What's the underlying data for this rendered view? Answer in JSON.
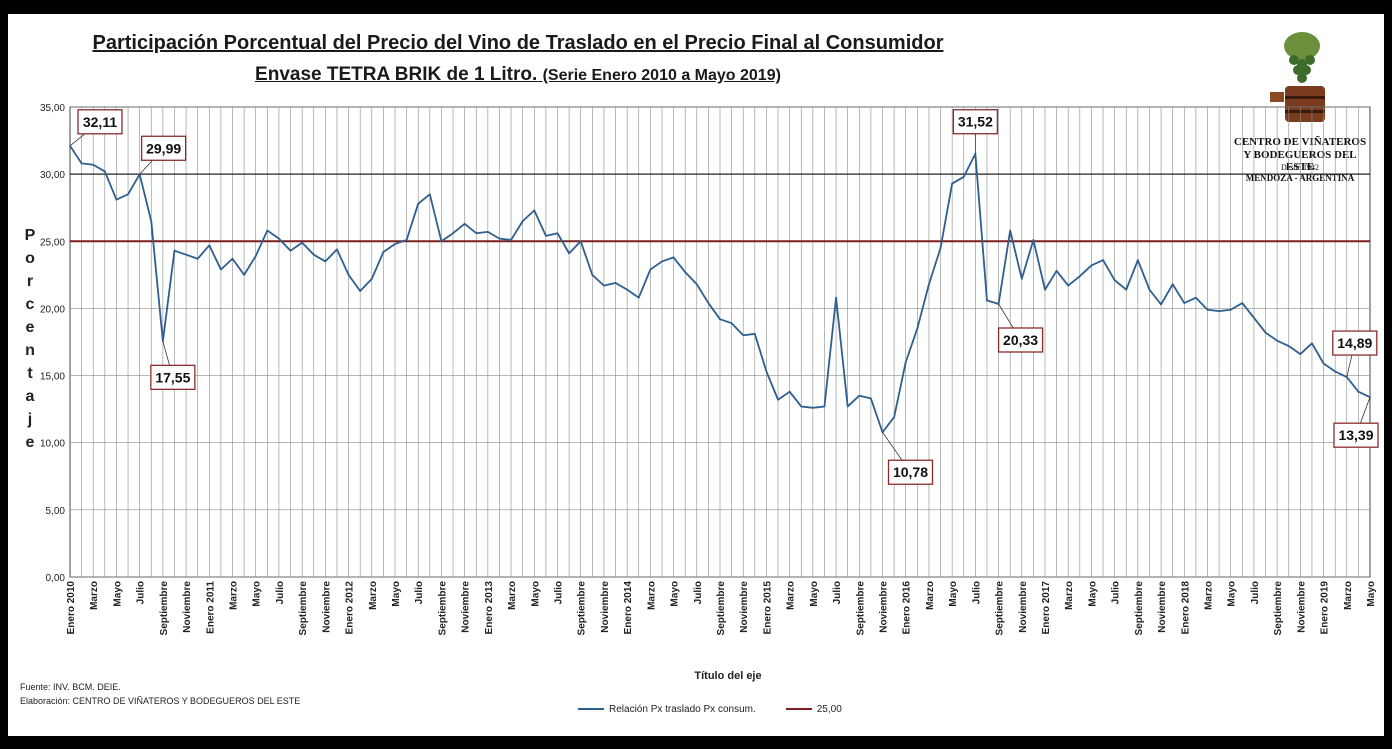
{
  "chart_data": {
    "type": "line",
    "title": "Participación Porcentual del Precio del Vino de Traslado en el Precio Final al Consumidor",
    "subtitle_main": "Envase TETRA BRIK de 1 Litro.",
    "subtitle_paren": "(Serie Enero 2010 a Mayo 2019)",
    "xlabel": "Título del eje",
    "ylabel": "Porcentaje",
    "ylim": [
      0,
      35
    ],
    "ytick_labels": [
      "0,00",
      "5,00",
      "10,00",
      "15,00",
      "20,00",
      "25,00",
      "30,00",
      "35,00"
    ],
    "x_start": "2010-01",
    "x_end": "2019-05",
    "xtick_labels": [
      "Enero 2010",
      "Marzo",
      "Mayo",
      "Julio",
      "Septiembre",
      "Noviembre",
      "Enero 2011",
      "Marzo",
      "Mayo",
      "Julio",
      "Septiembre",
      "Noviembre",
      "Enero 2012",
      "Marzo",
      "Mayo",
      "Julio",
      "Septiembre",
      "Noviembre",
      "Enero 2013",
      "Marzo",
      "Mayo",
      "Julio",
      "Septiembre",
      "Noviembre",
      "Enero 2014",
      "Marzo",
      "Mayo",
      "Julio",
      "Septiembre",
      "Noviembre",
      "Enero 2015",
      "Marzo",
      "Mayo",
      "Julio",
      "Septiembre",
      "Noviembre",
      "Enero 2016",
      "Marzo",
      "Mayo",
      "Julio",
      "Septiembre",
      "Noviembre",
      "Enero 2017",
      "Marzo",
      "Mayo",
      "Julio",
      "Septiembre",
      "Noviembre",
      "Enero 2018",
      "Marzo",
      "Mayo",
      "Julio",
      "Septiembre",
      "Noviembre",
      "Enero 2019",
      "Marzo",
      "Mayo"
    ],
    "grid": true,
    "legend_position": "bottom",
    "series": [
      {
        "name": "Relación Px traslado Px consum.",
        "color": "#2e5f8f",
        "values": [
          32.11,
          30.8,
          30.7,
          30.2,
          28.1,
          28.5,
          29.99,
          26.5,
          17.55,
          24.3,
          24.0,
          23.7,
          24.7,
          22.9,
          23.7,
          22.5,
          23.9,
          25.8,
          25.2,
          24.3,
          24.9,
          24.0,
          23.5,
          24.4,
          22.5,
          21.3,
          22.2,
          24.2,
          24.8,
          25.1,
          27.8,
          28.5,
          25.0,
          25.6,
          26.3,
          25.6,
          25.7,
          25.2,
          25.1,
          26.5,
          27.3,
          25.4,
          25.6,
          24.1,
          25.0,
          22.5,
          21.7,
          21.9,
          21.4,
          20.8,
          22.9,
          23.5,
          23.8,
          22.7,
          21.8,
          20.4,
          19.2,
          18.9,
          18.0,
          18.1,
          15.3,
          13.2,
          13.8,
          12.7,
          12.6,
          12.7,
          20.8,
          12.7,
          13.5,
          13.3,
          10.78,
          11.9,
          16.0,
          18.5,
          21.8,
          24.5,
          29.3,
          29.8,
          31.52,
          20.6,
          20.33,
          25.8,
          22.2,
          25.1,
          21.4,
          22.8,
          21.7,
          22.4,
          23.2,
          23.6,
          22.1,
          21.4,
          23.6,
          21.4,
          20.3,
          21.8,
          20.4,
          20.8,
          19.9,
          19.8,
          19.9,
          20.4,
          19.3,
          18.2,
          17.6,
          17.2,
          16.6,
          17.4,
          15.9,
          15.3,
          14.89,
          13.8,
          13.39
        ]
      },
      {
        "name": "25,00",
        "color": "#7b1f1f",
        "constant": 25.0
      }
    ],
    "annotations": [
      {
        "index": 0,
        "label": "32,11"
      },
      {
        "index": 6,
        "label": "29,99"
      },
      {
        "index": 8,
        "label": "17,55"
      },
      {
        "index": 70,
        "label": "10,78"
      },
      {
        "index": 78,
        "label": "31,52"
      },
      {
        "index": 80,
        "label": "20,33"
      },
      {
        "index": 110,
        "label": "14,89"
      },
      {
        "index": 112,
        "label": "13,39"
      }
    ]
  },
  "source_line": "Fuente: INV. BCM. DEIE.",
  "elaboration_line": "Elaboración: CENTRO DE VIÑATEROS Y BODEGUEROS DEL ESTE",
  "logo": {
    "line1": "CENTRO DE VIÑATEROS",
    "line2": "Y BODEGUEROS DEL ESTE",
    "line3": "Desde 1942",
    "line4": "MENDOZA - ARGENTINA"
  }
}
